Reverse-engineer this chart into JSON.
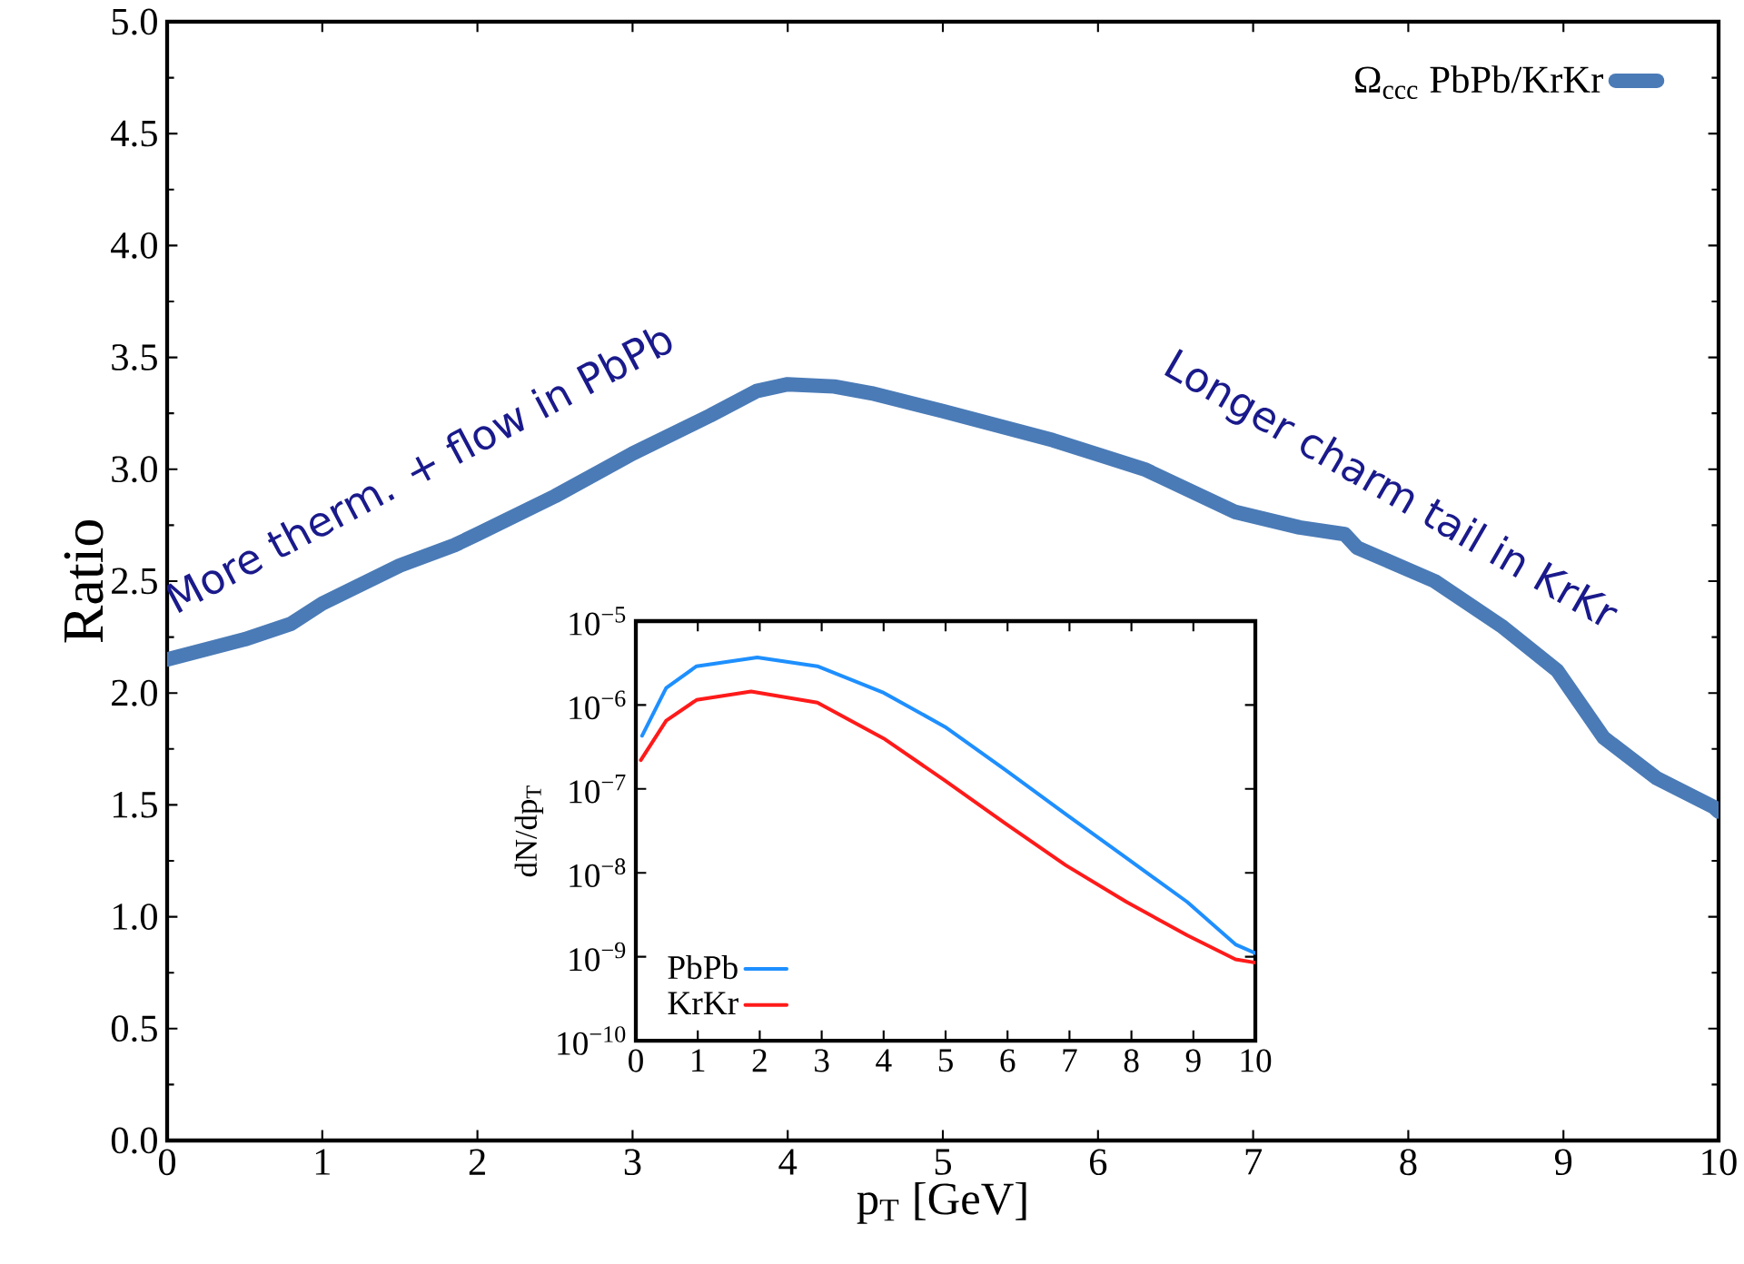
{
  "chart_data": [
    {
      "type": "line",
      "xlabel": "p$_{T}$ [GeV]",
      "ylabel": "Ratio",
      "xlim": [
        0,
        10
      ],
      "ylim": [
        0,
        5
      ],
      "xticks": [
        0,
        1,
        2,
        3,
        4,
        5,
        6,
        7,
        8,
        9,
        10
      ],
      "yticks": [
        {
          "value": 0,
          "label": "0.0"
        },
        0.5,
        {
          "value": 1,
          "label": "1.0"
        },
        1.5,
        {
          "value": 2,
          "label": "2.0"
        },
        2.5,
        {
          "value": 3,
          "label": "3.0"
        },
        3.5,
        {
          "value": 4,
          "label": "4.0"
        },
        4.5,
        {
          "value": 5,
          "label": "5.0"
        }
      ],
      "legend": "top right",
      "grid": false,
      "annotations": [
        "More therm. + flow in PbPb",
        "Longer charm tail in KrKr"
      ],
      "series": [
        {
          "name": "Ω$_{ccc}$ PbPb/KrKr",
          "color": "#4a7bb7",
          "x": [
            0,
            0.5,
            0.8,
            1.0,
            1.5,
            1.85,
            2.0,
            2.5,
            3.0,
            3.5,
            3.8,
            4.0,
            4.3,
            4.54,
            5.0,
            5.71,
            6.3,
            6.88,
            7.3,
            7.59,
            7.67,
            8.17,
            8.6,
            8.96,
            9.26,
            9.6,
            9.97,
            10
          ],
          "values": [
            2.15,
            2.24,
            2.31,
            2.4,
            2.57,
            2.66,
            2.71,
            2.88,
            3.07,
            3.24,
            3.35,
            3.38,
            3.37,
            3.34,
            3.26,
            3.13,
            3.0,
            2.81,
            2.74,
            2.71,
            2.65,
            2.5,
            2.3,
            2.1,
            1.8,
            1.62,
            1.49,
            1.47
          ]
        }
      ]
    },
    {
      "type": "line",
      "ylabel": "dN/dp$_{T}$",
      "log": "y",
      "xlim": [
        0,
        10
      ],
      "ylim": [
        1e-10,
        1e-05
      ],
      "xticks": [
        0,
        1,
        2,
        3,
        4,
        5,
        6,
        7,
        8,
        9,
        10
      ],
      "yticks": [
        {
          "value": 1e-10,
          "label": "10$^{−10}$"
        },
        {
          "value": 1e-09,
          "label": "10$^{−9}$"
        },
        {
          "value": 1e-08,
          "label": "10$^{−8}$"
        },
        {
          "value": 1e-07,
          "label": "10$^{−7}$"
        },
        {
          "value": 1e-06,
          "label": "10$^{−6}$"
        },
        {
          "value": 1e-05,
          "label": "10$^{−5}$"
        }
      ],
      "legend": "bottom left",
      "grid": false,
      "series": [
        {
          "name": "PbPb",
          "color": "#1e8fff",
          "x": [
            0.1,
            0.49,
            0.98,
            1.96,
            2.93,
            4.0,
            4.99,
            5.96,
            6.94,
            7.92,
            8.9,
            9.68,
            10
          ],
          "values": [
            4.3e-07,
            1.6e-06,
            2.9e-06,
            3.7e-06,
            2.9e-06,
            1.4e-06,
            5.5e-07,
            1.7e-07,
            5e-08,
            1.5e-08,
            4.5e-09,
            1.4e-09,
            1.1e-09
          ]
        },
        {
          "name": "KrKr",
          "color": "#ff1a1a",
          "x": [
            0.08,
            0.49,
            0.98,
            1.86,
            2.93,
            4.0,
            4.99,
            5.96,
            6.94,
            7.92,
            8.9,
            9.68,
            10
          ],
          "values": [
            2.2e-07,
            6.5e-07,
            1.15e-06,
            1.45e-06,
            1.07e-06,
            4e-07,
            1.26e-07,
            3.9e-08,
            1.23e-08,
            4.5e-09,
            1.8e-09,
            9.3e-10,
            8.5e-10
          ]
        }
      ]
    }
  ]
}
